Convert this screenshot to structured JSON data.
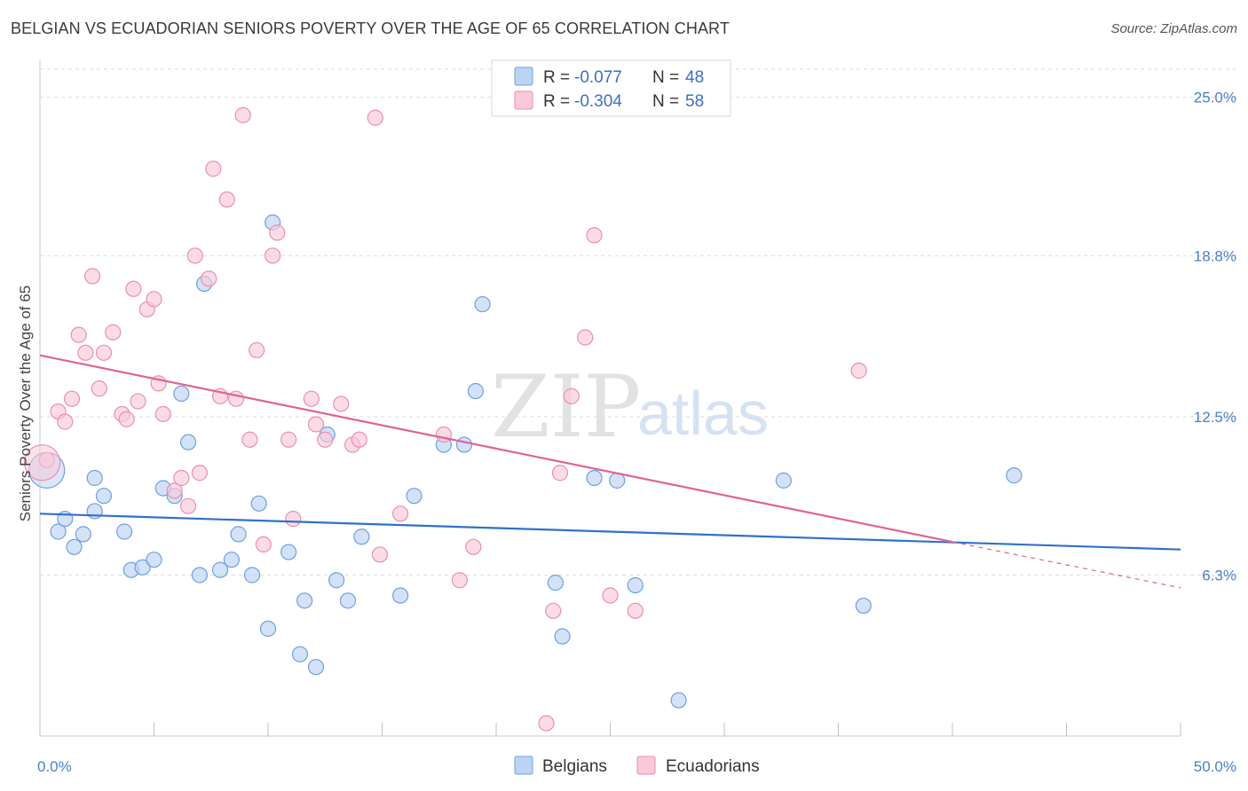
{
  "title": "BELGIAN VS ECUADORIAN SENIORS POVERTY OVER THE AGE OF 65 CORRELATION CHART",
  "source": "Source: ZipAtlas.com",
  "watermark": {
    "zip": "ZIP",
    "atlas": "atlas"
  },
  "chart_data": {
    "type": "scatter",
    "xlabel": "",
    "ylabel": "Seniors Poverty Over the Age of 65",
    "xlim": [
      0,
      50
    ],
    "ylim": [
      0,
      26.1
    ],
    "x_tick_labels": [
      {
        "value": 0,
        "label": "0.0%"
      },
      {
        "value": 50,
        "label": "50.0%"
      }
    ],
    "y_ticks": [
      {
        "value": 6.3,
        "label": "6.3%"
      },
      {
        "value": 12.5,
        "label": "12.5%"
      },
      {
        "value": 18.8,
        "label": "18.8%"
      },
      {
        "value": 25.0,
        "label": "25.0%"
      }
    ],
    "grid": "horizontal dashed",
    "legend_position": "top-center",
    "series": [
      {
        "name": "Belgians",
        "color": "#6fa0e0",
        "fill": "#bcd3f3",
        "r_label": "R = ",
        "r_value": "-0.077",
        "n_label": "N = ",
        "n_value": "48",
        "trend": {
          "x0": 0,
          "y0": 8.7,
          "x1": 50,
          "y1": 7.3,
          "color": "#3070cc"
        },
        "points": [
          [
            0.3,
            10.4
          ],
          [
            0.8,
            8.0
          ],
          [
            1.1,
            8.5
          ],
          [
            1.5,
            7.4
          ],
          [
            1.9,
            7.9
          ],
          [
            2.4,
            10.1
          ],
          [
            2.8,
            9.4
          ],
          [
            2.4,
            8.8
          ],
          [
            3.7,
            8.0
          ],
          [
            4.0,
            6.5
          ],
          [
            4.5,
            6.6
          ],
          [
            5.0,
            6.9
          ],
          [
            5.4,
            9.7
          ],
          [
            5.9,
            9.4
          ],
          [
            6.2,
            13.4
          ],
          [
            6.5,
            11.5
          ],
          [
            7.0,
            6.3
          ],
          [
            7.2,
            17.7
          ],
          [
            7.9,
            6.5
          ],
          [
            8.4,
            6.9
          ],
          [
            8.7,
            7.9
          ],
          [
            9.3,
            6.3
          ],
          [
            9.6,
            9.1
          ],
          [
            10.0,
            4.2
          ],
          [
            10.2,
            20.1
          ],
          [
            10.9,
            7.2
          ],
          [
            11.4,
            3.2
          ],
          [
            11.6,
            5.3
          ],
          [
            12.1,
            2.7
          ],
          [
            12.6,
            11.8
          ],
          [
            13.0,
            6.1
          ],
          [
            13.5,
            5.3
          ],
          [
            14.1,
            7.8
          ],
          [
            15.8,
            5.5
          ],
          [
            16.4,
            9.4
          ],
          [
            17.7,
            11.4
          ],
          [
            18.6,
            11.4
          ],
          [
            19.1,
            13.5
          ],
          [
            19.4,
            16.9
          ],
          [
            22.6,
            6.0
          ],
          [
            22.9,
            3.9
          ],
          [
            24.3,
            10.1
          ],
          [
            25.3,
            10.0
          ],
          [
            26.1,
            5.9
          ],
          [
            28.0,
            1.4
          ],
          [
            32.6,
            10.0
          ],
          [
            36.1,
            5.1
          ],
          [
            42.7,
            10.2
          ]
        ]
      },
      {
        "name": "Ecuadorians",
        "color": "#ec8fae",
        "fill": "#f9c9d8",
        "r_label": "R = ",
        "r_value": "-0.304",
        "n_label": "N = ",
        "n_value": "58",
        "trend": {
          "x0": 0,
          "y0": 14.9,
          "x1": 40.0,
          "y1": 7.6,
          "color": "#e0648f",
          "dash_x1": 50,
          "dash_y1": 5.8
        },
        "points": [
          [
            0.3,
            10.8
          ],
          [
            0.8,
            12.7
          ],
          [
            1.1,
            12.3
          ],
          [
            1.4,
            13.2
          ],
          [
            1.7,
            15.7
          ],
          [
            2.0,
            15.0
          ],
          [
            2.3,
            18.0
          ],
          [
            2.6,
            13.6
          ],
          [
            2.8,
            15.0
          ],
          [
            3.2,
            15.8
          ],
          [
            3.6,
            12.6
          ],
          [
            3.8,
            12.4
          ],
          [
            4.1,
            17.5
          ],
          [
            4.3,
            13.1
          ],
          [
            4.7,
            16.7
          ],
          [
            5.0,
            17.1
          ],
          [
            5.2,
            13.8
          ],
          [
            5.4,
            12.6
          ],
          [
            5.9,
            9.6
          ],
          [
            6.2,
            10.1
          ],
          [
            6.5,
            9.0
          ],
          [
            6.8,
            18.8
          ],
          [
            7.0,
            10.3
          ],
          [
            7.4,
            17.9
          ],
          [
            7.6,
            22.2
          ],
          [
            7.9,
            13.3
          ],
          [
            8.2,
            21.0
          ],
          [
            8.6,
            13.2
          ],
          [
            8.9,
            24.3
          ],
          [
            9.2,
            11.6
          ],
          [
            9.5,
            15.1
          ],
          [
            9.8,
            7.5
          ],
          [
            10.2,
            18.8
          ],
          [
            10.4,
            19.7
          ],
          [
            10.9,
            11.6
          ],
          [
            11.1,
            8.5
          ],
          [
            11.9,
            13.2
          ],
          [
            12.1,
            12.2
          ],
          [
            12.5,
            11.6
          ],
          [
            13.2,
            13.0
          ],
          [
            13.7,
            11.4
          ],
          [
            14.0,
            11.6
          ],
          [
            14.9,
            7.1
          ],
          [
            14.7,
            24.2
          ],
          [
            15.8,
            8.7
          ],
          [
            17.7,
            11.8
          ],
          [
            18.4,
            6.1
          ],
          [
            19.0,
            7.4
          ],
          [
            22.2,
            0.5
          ],
          [
            22.5,
            4.9
          ],
          [
            22.8,
            10.3
          ],
          [
            23.3,
            13.3
          ],
          [
            23.9,
            15.6
          ],
          [
            24.3,
            19.6
          ],
          [
            25.0,
            5.5
          ],
          [
            26.1,
            4.9
          ],
          [
            35.9,
            14.3
          ],
          [
            0.1,
            10.7
          ]
        ]
      }
    ]
  }
}
